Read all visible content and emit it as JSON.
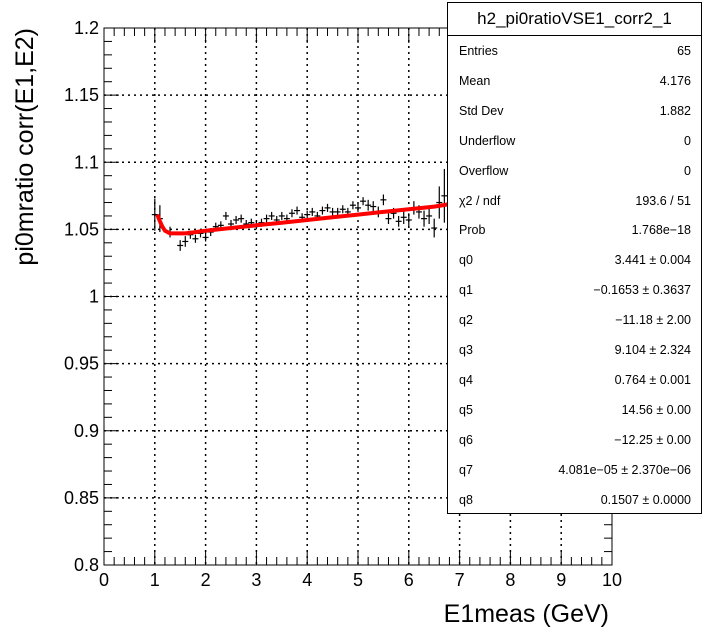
{
  "chart_data": {
    "type": "scatter",
    "title": "",
    "xlabel": "E1meas (GeV)",
    "ylabel": "pi0mratio corr(E1,E2)",
    "xlim": [
      0,
      10
    ],
    "ylim": [
      0.8,
      1.2
    ],
    "xticks": [
      0,
      1,
      2,
      3,
      4,
      5,
      6,
      7,
      8,
      9,
      10
    ],
    "yticks": [
      0.8,
      0.85,
      0.9,
      0.95,
      1,
      1.05,
      1.1,
      1.15,
      1.2
    ],
    "ytick_labels": [
      "0.8",
      "0.85",
      "0.9",
      "0.95",
      "1",
      "1.05",
      "1.1",
      "1.15",
      "1.2"
    ],
    "grid": true,
    "colors": {
      "fit": "#ff0000",
      "points": "#000000"
    },
    "series": [
      {
        "x": [
          1.0,
          1.1,
          1.3,
          1.5,
          1.6,
          1.7,
          1.8,
          1.9,
          2.0,
          2.1,
          2.2,
          2.3,
          2.4,
          2.5,
          2.6,
          2.7,
          2.8,
          2.9,
          3.0,
          3.1,
          3.2,
          3.3,
          3.4,
          3.5,
          3.6,
          3.7,
          3.8,
          3.9,
          4.0,
          4.1,
          4.2,
          4.3,
          4.4,
          4.5,
          4.6,
          4.7,
          4.8,
          4.9,
          5.0,
          5.1,
          5.2,
          5.3,
          5.4,
          5.5,
          5.6,
          5.7,
          5.8,
          5.9,
          6.0,
          6.1,
          6.2,
          6.3,
          6.4,
          6.5,
          6.6,
          6.7
        ],
        "y": [
          1.061,
          1.058,
          1.048,
          1.038,
          1.041,
          1.046,
          1.043,
          1.047,
          1.044,
          1.048,
          1.052,
          1.053,
          1.06,
          1.054,
          1.057,
          1.058,
          1.054,
          1.055,
          1.053,
          1.055,
          1.058,
          1.06,
          1.057,
          1.06,
          1.058,
          1.062,
          1.064,
          1.059,
          1.061,
          1.063,
          1.06,
          1.064,
          1.066,
          1.063,
          1.063,
          1.065,
          1.063,
          1.068,
          1.066,
          1.071,
          1.068,
          1.067,
          1.063,
          1.072,
          1.058,
          1.062,
          1.056,
          1.059,
          1.057,
          1.066,
          1.063,
          1.058,
          1.06,
          1.051,
          1.07,
          1.075
        ],
        "yerr": [
          0.012,
          0.01,
          0.004,
          0.004,
          0.004,
          0.003,
          0.003,
          0.003,
          0.003,
          0.003,
          0.003,
          0.003,
          0.003,
          0.003,
          0.003,
          0.003,
          0.003,
          0.003,
          0.003,
          0.003,
          0.003,
          0.003,
          0.003,
          0.003,
          0.003,
          0.003,
          0.003,
          0.003,
          0.003,
          0.003,
          0.003,
          0.003,
          0.003,
          0.003,
          0.003,
          0.003,
          0.003,
          0.003,
          0.003,
          0.003,
          0.004,
          0.004,
          0.004,
          0.004,
          0.004,
          0.004,
          0.004,
          0.005,
          0.005,
          0.005,
          0.005,
          0.006,
          0.006,
          0.007,
          0.012,
          0.02
        ]
      }
    ],
    "fit": {
      "x": [
        1.05,
        1.1,
        1.15,
        1.2,
        1.3,
        1.4,
        1.6,
        1.8,
        2.0,
        2.5,
        3.0,
        3.5,
        4.0,
        4.5,
        5.0,
        5.5,
        6.0,
        6.5,
        7.0
      ],
      "y": [
        1.061,
        1.056,
        1.052,
        1.049,
        1.047,
        1.047,
        1.047,
        1.048,
        1.049,
        1.051,
        1.053,
        1.055,
        1.057,
        1.059,
        1.061,
        1.063,
        1.065,
        1.067,
        1.07
      ]
    }
  },
  "stats": {
    "title": "h2_pi0ratioVSE1_corr2_1",
    "rows": [
      {
        "label": "Entries",
        "value": "65"
      },
      {
        "label": "Mean",
        "value": "4.176"
      },
      {
        "label": "Std Dev",
        "value": "1.882"
      },
      {
        "label": "Underflow",
        "value": "0"
      },
      {
        "label": "Overflow",
        "value": "0"
      },
      {
        "label": "χ2 / ndf",
        "value": "193.6 / 51"
      },
      {
        "label": "Prob",
        "value": "1.768e−18"
      },
      {
        "label": "q0",
        "value": "3.441 ± 0.004"
      },
      {
        "label": "q1",
        "value": "−0.1653 ± 0.3637"
      },
      {
        "label": "q2",
        "value": "−11.18 ± 2.00"
      },
      {
        "label": "q3",
        "value": "9.104 ± 2.324"
      },
      {
        "label": "q4",
        "value": "0.764 ± 0.001"
      },
      {
        "label": "q5",
        "value": "14.56 ± 0.00"
      },
      {
        "label": "q6",
        "value": "−12.25 ± 0.00"
      },
      {
        "label": "q7",
        "value": "4.081e−05 ± 2.370e−06"
      },
      {
        "label": "q8",
        "value": "0.1507 ± 0.0000"
      }
    ]
  }
}
